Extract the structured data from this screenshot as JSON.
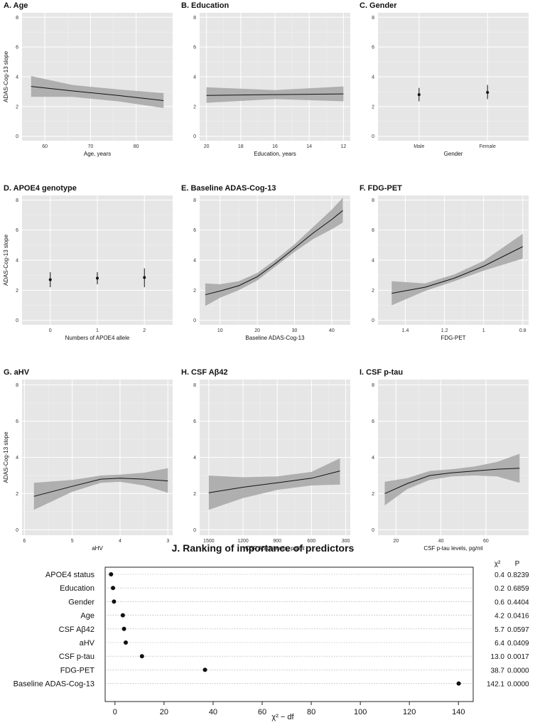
{
  "chart_data": [
    {
      "type": "line",
      "title": "A. Age",
      "xlabel": "Age, years",
      "ylabel": "ADAS-Cog-13 slope",
      "xlim": [
        55,
        88
      ],
      "ylim": [
        -0.3,
        8.3
      ],
      "xticks": [
        60,
        70,
        80
      ],
      "yticks": [
        0,
        2,
        4,
        6,
        8
      ],
      "line": {
        "x": [
          57,
          66,
          76,
          86
        ],
        "y": [
          3.35,
          3.05,
          2.75,
          2.4
        ]
      },
      "band": {
        "x": [
          57,
          66,
          76,
          86
        ],
        "lower": [
          2.65,
          2.65,
          2.35,
          1.9
        ],
        "upper": [
          4.05,
          3.45,
          3.15,
          2.9
        ]
      }
    },
    {
      "type": "line",
      "title": "B. Education",
      "xlabel": "Education, years",
      "ylabel": "",
      "xlim": [
        20.4,
        11.6
      ],
      "ylim": [
        -0.3,
        8.3
      ],
      "xticks": [
        20,
        18,
        16,
        14,
        12
      ],
      "yticks": [
        0,
        2,
        4,
        6,
        8
      ],
      "line": {
        "x": [
          20,
          16,
          12
        ],
        "y": [
          2.75,
          2.8,
          2.85
        ]
      },
      "band": {
        "x": [
          20,
          16,
          12
        ],
        "lower": [
          2.25,
          2.5,
          2.35
        ],
        "upper": [
          3.3,
          3.1,
          3.35
        ]
      }
    },
    {
      "type": "errorbar",
      "title": "C. Gender",
      "xlabel": "Gender",
      "ylabel": "",
      "categories": [
        "Male",
        "Female"
      ],
      "values": [
        2.8,
        2.95
      ],
      "lower": [
        2.35,
        2.5
      ],
      "upper": [
        3.25,
        3.45
      ],
      "ylim": [
        -0.3,
        8.3
      ],
      "yticks": [
        0,
        2,
        4,
        6,
        8
      ]
    },
    {
      "type": "errorbar",
      "title": "D. APOE4 genotype",
      "xlabel": "Numbers of APOE4 allele",
      "ylabel": "ADAS-Cog-13 slope",
      "categories": [
        "0",
        "1",
        "2"
      ],
      "values": [
        2.7,
        2.8,
        2.85
      ],
      "lower": [
        2.2,
        2.4,
        2.2
      ],
      "upper": [
        3.2,
        3.2,
        3.45
      ],
      "ylim": [
        -0.3,
        8.3
      ],
      "yticks": [
        0,
        2,
        4,
        6,
        8
      ]
    },
    {
      "type": "line",
      "title": "E. Baseline ADAS-Cog-13",
      "xlabel": "Baseline ADAS-Cog-13",
      "ylabel": "",
      "xlim": [
        4.5,
        45
      ],
      "ylim": [
        -0.3,
        8.3
      ],
      "xticks": [
        10,
        20,
        30,
        40
      ],
      "yticks": [
        0,
        2,
        4,
        6,
        8
      ],
      "line": {
        "x": [
          6,
          10,
          15,
          20,
          25,
          30,
          35,
          40,
          43
        ],
        "y": [
          1.7,
          1.95,
          2.3,
          2.9,
          3.8,
          4.8,
          5.8,
          6.7,
          7.3
        ]
      },
      "band": {
        "x": [
          6,
          10,
          15,
          20,
          25,
          30,
          35,
          40,
          43
        ],
        "lower": [
          0.95,
          1.5,
          2.0,
          2.65,
          3.6,
          4.55,
          5.4,
          6.05,
          6.5
        ],
        "upper": [
          2.45,
          2.4,
          2.6,
          3.15,
          4.05,
          5.05,
          6.2,
          7.35,
          8.15
        ]
      }
    },
    {
      "type": "line",
      "title": "F. FDG-PET",
      "xlabel": "FDG-PET",
      "ylabel": "",
      "xlim": [
        1.54,
        0.77
      ],
      "ylim": [
        -0.3,
        8.3
      ],
      "xticks": [
        1.4,
        1.2,
        1.0,
        0.8
      ],
      "yticks": [
        0,
        2,
        4,
        6,
        8
      ],
      "line": {
        "x": [
          1.47,
          1.3,
          1.15,
          1.0,
          0.8
        ],
        "y": [
          1.8,
          2.2,
          2.8,
          3.6,
          4.9
        ]
      },
      "band": {
        "x": [
          1.47,
          1.3,
          1.15,
          1.0,
          0.8
        ],
        "lower": [
          1.0,
          1.95,
          2.6,
          3.3,
          4.1
        ],
        "upper": [
          2.6,
          2.45,
          3.05,
          3.95,
          5.75
        ]
      }
    },
    {
      "type": "line",
      "title": "G. aHV",
      "xlabel": "aHV",
      "ylabel": "ADAS-Cog-13 slope",
      "xlim": [
        6.05,
        2.9
      ],
      "ylim": [
        -0.3,
        8.3
      ],
      "xticks": [
        6,
        5,
        4,
        3
      ],
      "xtick_labels": [
        "6",
        "5",
        "4",
        "3"
      ],
      "yticks": [
        0,
        2,
        4,
        6,
        8
      ],
      "line": {
        "x": [
          5.8,
          5.0,
          4.4,
          4.0,
          3.5,
          3.0
        ],
        "y": [
          1.85,
          2.4,
          2.8,
          2.85,
          2.8,
          2.7
        ]
      },
      "band": {
        "x": [
          5.8,
          5.0,
          4.4,
          4.0,
          3.5,
          3.0
        ],
        "lower": [
          1.1,
          2.1,
          2.6,
          2.65,
          2.45,
          2.05
        ],
        "upper": [
          2.6,
          2.75,
          3.0,
          3.05,
          3.15,
          3.4
        ]
      }
    },
    {
      "type": "line",
      "title": "H. CSF Aβ42",
      "xlabel": "CSF Aβ42 levels, pg/ml",
      "ylabel": "",
      "xlim": [
        1580,
        260
      ],
      "ylim": [
        -0.3,
        8.3
      ],
      "xticks": [
        1500,
        1200,
        900,
        600,
        300
      ],
      "yticks": [
        0,
        2,
        4,
        6,
        8
      ],
      "line": {
        "x": [
          1500,
          1200,
          900,
          600,
          350
        ],
        "y": [
          2.05,
          2.35,
          2.6,
          2.85,
          3.25
        ]
      },
      "band": {
        "x": [
          1500,
          1200,
          900,
          600,
          350
        ],
        "lower": [
          1.1,
          1.75,
          2.2,
          2.45,
          2.5
        ],
        "upper": [
          3.0,
          2.9,
          2.95,
          3.2,
          3.95
        ]
      }
    },
    {
      "type": "line",
      "title": "I. CSF p-tau",
      "xlabel": "CSF p-tau levels, pg/ml",
      "ylabel": "",
      "xlim": [
        12,
        79
      ],
      "ylim": [
        -0.3,
        8.3
      ],
      "xticks": [
        20,
        40,
        60
      ],
      "yticks": [
        0,
        2,
        4,
        6,
        8
      ],
      "line": {
        "x": [
          15,
          25,
          35,
          45,
          55,
          65,
          75
        ],
        "y": [
          2.0,
          2.55,
          3.0,
          3.15,
          3.25,
          3.35,
          3.4
        ]
      },
      "band": {
        "x": [
          15,
          25,
          35,
          45,
          55,
          65,
          75
        ],
        "lower": [
          1.35,
          2.25,
          2.75,
          2.95,
          3.0,
          2.95,
          2.6
        ],
        "upper": [
          2.65,
          2.85,
          3.25,
          3.35,
          3.5,
          3.75,
          4.2
        ]
      }
    },
    {
      "type": "dot",
      "title": "J. Ranking of importance of predictors",
      "xlabel": "χ² − df",
      "xlim": [
        -4,
        146
      ],
      "xticks": [
        0,
        20,
        40,
        60,
        80,
        100,
        120,
        140
      ],
      "stat_headers": [
        "χ²",
        "P"
      ],
      "categories": [
        "APOE4 status",
        "Education",
        "Gender",
        "Age",
        "CSF Aβ42",
        "aHV",
        "CSF p-tau",
        "FDG-PET",
        "Baseline ADAS-Cog-13"
      ],
      "values": [
        -1.6,
        -0.8,
        -0.4,
        3.2,
        3.7,
        4.4,
        11.0,
        36.7,
        140.1
      ],
      "chi2": [
        "0.4",
        "0.2",
        "0.6",
        "4.2",
        "5.7",
        "6.4",
        "13.0",
        "38.7",
        "142.1"
      ],
      "p": [
        "0.8239",
        "0.6859",
        "0.4404",
        "0.0416",
        "0.0597",
        "0.0409",
        "0.0017",
        "0.0000",
        "0.0000"
      ]
    }
  ]
}
